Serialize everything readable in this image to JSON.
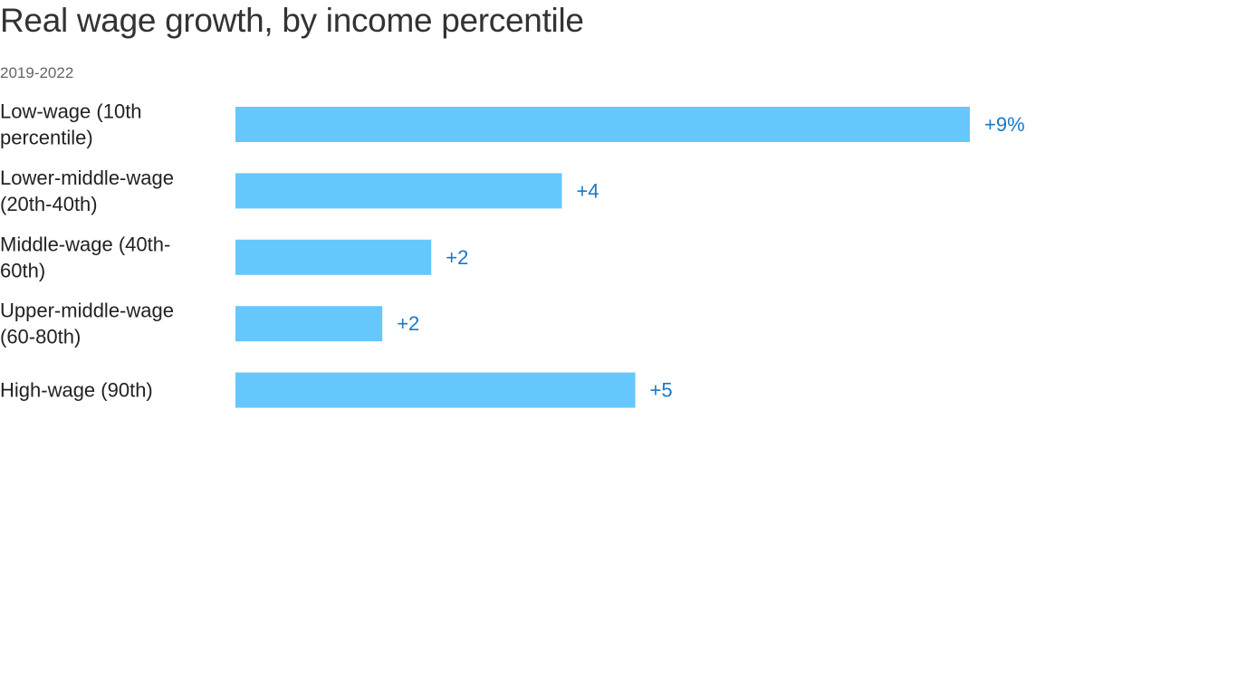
{
  "chart_data": {
    "type": "bar",
    "orientation": "horizontal",
    "title": "Real wage growth, by income percentile",
    "subtitle": "2019-2022",
    "categories": [
      [
        "Low-wage (10th",
        "percentile)"
      ],
      [
        "Lower-middle-wage",
        "(20th-40th)"
      ],
      [
        "Middle-wage (40th-",
        "60th)"
      ],
      [
        "Upper-middle-wage",
        "(60-80th)"
      ],
      [
        "High-wage (90th)"
      ]
    ],
    "values": [
      9,
      4,
      2.4,
      1.8,
      4.9
    ],
    "data_labels": [
      "+9%",
      "+4",
      "+2",
      "+2",
      "+5"
    ],
    "xlim": [
      0,
      9
    ],
    "grid": false,
    "legend": "none",
    "colors": {
      "bar": "#66c7fc",
      "data_label": "#1779c8",
      "category_label": "#222222",
      "title": "#333333",
      "subtitle": "#666666"
    }
  }
}
